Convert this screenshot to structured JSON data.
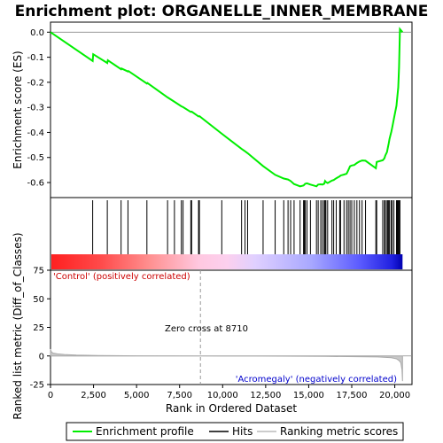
{
  "chart_data": {
    "type": "line",
    "title": "Enrichment plot: ORGANELLE_INNER_MEMBRANE",
    "xlabel": "Rank in Ordered Dataset",
    "top_panel": {
      "ylabel": "Enrichment score (ES)",
      "ylim": [
        -0.66,
        0.04
      ],
      "yticks": [
        0.0,
        -0.1,
        -0.2,
        -0.3,
        -0.4,
        -0.5,
        -0.6
      ],
      "ytick_labels": [
        "0.0",
        "-0.1",
        "-0.2",
        "-0.3",
        "-0.4",
        "-0.5",
        "-0.6"
      ],
      "series": [
        {
          "name": "Enrichment profile",
          "color": "#00ee00",
          "x": [
            0,
            2450,
            2480,
            3300,
            3330,
            4100,
            4130,
            4500,
            4530,
            5600,
            5630,
            6800,
            7200,
            7600,
            7700,
            8150,
            8200,
            8600,
            8650,
            9950,
            11100,
            11300,
            11450,
            12350,
            13050,
            13550,
            13800,
            13950,
            14150,
            14500,
            14700,
            14750,
            14800,
            14900,
            15100,
            15450,
            15550,
            15700,
            15800,
            15900,
            15950,
            16000,
            16100,
            16350,
            16450,
            16600,
            16800,
            16850,
            17050,
            17200,
            17300,
            17400,
            17500,
            17650,
            17800,
            17950,
            18100,
            18300,
            18900,
            18950,
            19300,
            19400,
            19450,
            19550,
            19600,
            19650,
            19700,
            19800,
            19850,
            19950,
            20100,
            20150,
            20200,
            20250,
            20300,
            20450
          ],
          "y": [
            0.0,
            -0.115,
            -0.088,
            -0.123,
            -0.112,
            -0.148,
            -0.145,
            -0.157,
            -0.155,
            -0.205,
            -0.203,
            -0.26,
            -0.278,
            -0.296,
            -0.299,
            -0.318,
            -0.317,
            -0.336,
            -0.335,
            -0.405,
            -0.466,
            -0.475,
            -0.483,
            -0.534,
            -0.569,
            -0.584,
            -0.588,
            -0.594,
            -0.606,
            -0.615,
            -0.612,
            -0.608,
            -0.605,
            -0.603,
            -0.608,
            -0.615,
            -0.608,
            -0.607,
            -0.608,
            -0.605,
            -0.594,
            -0.598,
            -0.602,
            -0.592,
            -0.59,
            -0.583,
            -0.575,
            -0.572,
            -0.568,
            -0.565,
            -0.551,
            -0.535,
            -0.532,
            -0.53,
            -0.522,
            -0.516,
            -0.512,
            -0.513,
            -0.543,
            -0.518,
            -0.511,
            -0.503,
            -0.492,
            -0.478,
            -0.46,
            -0.443,
            -0.425,
            -0.397,
            -0.38,
            -0.345,
            -0.293,
            -0.256,
            -0.22,
            -0.14,
            0.012,
            0.0
          ]
        }
      ],
      "hits": [
        2450,
        3300,
        4100,
        4500,
        5600,
        6800,
        7200,
        7600,
        7700,
        8150,
        8200,
        8600,
        8650,
        9950,
        11100,
        11300,
        11450,
        12350,
        13050,
        13550,
        13800,
        13950,
        14150,
        14500,
        14700,
        14750,
        14800,
        14900,
        15100,
        15450,
        15550,
        15700,
        15800,
        15900,
        15950,
        16000,
        16100,
        16350,
        16450,
        16600,
        16800,
        16850,
        17050,
        17200,
        17300,
        17400,
        17500,
        17650,
        17800,
        17950,
        18100,
        18300,
        18900,
        18950,
        19300,
        19400,
        19450,
        19550,
        19600,
        19650,
        19700,
        19800,
        19850,
        19950,
        20100,
        20150,
        20200,
        20250,
        20300
      ]
    },
    "bottom_panel": {
      "ylabel": "Ranked list metric (Diff_of_Classes)",
      "ylim": [
        -25,
        75
      ],
      "yticks": [
        75,
        50,
        25,
        0,
        -25
      ],
      "ytick_labels": [
        "75",
        "50",
        "25",
        "0",
        "-25"
      ],
      "metric_x": [
        0,
        50,
        150,
        400,
        800,
        1500,
        2800,
        5000,
        8710,
        12000,
        16000,
        19000,
        19800,
        20100,
        20250,
        20350,
        20420,
        20450
      ],
      "metric_y": [
        6.0,
        3.5,
        2.5,
        1.8,
        1.3,
        0.8,
        0.4,
        0.1,
        0.0,
        -0.1,
        -0.4,
        -0.9,
        -1.5,
        -2.5,
        -4.0,
        -6.0,
        -12.0,
        -22.0
      ],
      "pos_label": "'Control' (positively correlated)",
      "neg_label": "'Acromegaly' (negatively correlated)",
      "zero_cross_label": "Zero cross at 8710",
      "zero_cross": 8710
    },
    "xlim": [
      0,
      21000
    ],
    "xticks": [
      0,
      2500,
      5000,
      7500,
      10000,
      12500,
      15000,
      17500,
      20000
    ],
    "xtick_labels": [
      "0",
      "2,500",
      "5,000",
      "7,500",
      "10,000",
      "12,500",
      "15,000",
      "17,500",
      "20,000"
    ],
    "n_genes": 20450,
    "legend": {
      "items": [
        {
          "label": "Enrichment profile",
          "color": "#00ee00"
        },
        {
          "label": "Hits",
          "color": "#000000"
        },
        {
          "label": "Ranking metric scores",
          "color": "#bbbbbb"
        }
      ]
    }
  }
}
